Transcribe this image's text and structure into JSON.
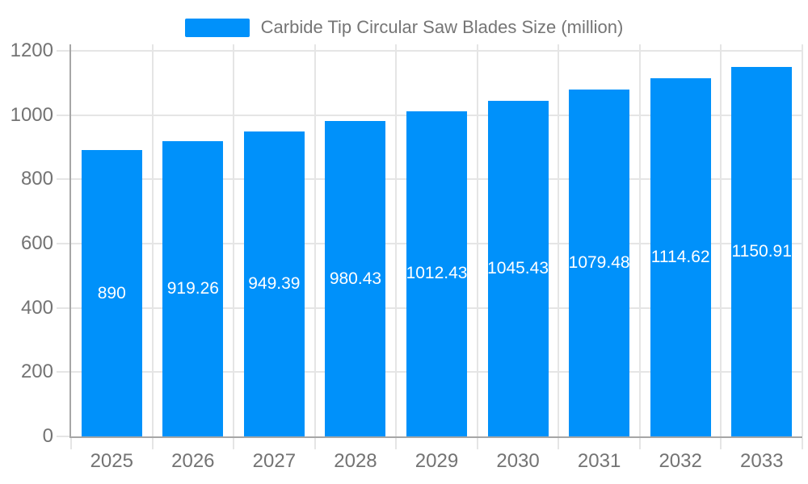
{
  "legend": {
    "label": "Carbide Tip Circular Saw Blades Size (million)"
  },
  "chart_data": {
    "type": "bar",
    "title": "Carbide Tip Circular Saw Blades Size (million)",
    "categories": [
      "2025",
      "2026",
      "2027",
      "2028",
      "2029",
      "2030",
      "2031",
      "2032",
      "2033"
    ],
    "values": [
      890,
      919.26,
      949.39,
      980.43,
      1012.43,
      1045.43,
      1079.48,
      1114.62,
      1150.91
    ],
    "value_labels": [
      "890",
      "919.26",
      "949.39",
      "980.43",
      "1012.43",
      "1045.43",
      "1079.48",
      "1114.62",
      "1150.91"
    ],
    "xlabel": "",
    "ylabel": "",
    "ylim": [
      0,
      1200
    ],
    "y_ticks": [
      0,
      200,
      400,
      600,
      800,
      1000,
      1200
    ],
    "grid": true,
    "legend_position": "top",
    "bar_label_position": "inside-middle",
    "colors": {
      "bar": "#0091FA",
      "bar_label": "#ffffff",
      "grid": "#E5E5E5",
      "axis_line": "#A6A6A6",
      "tick_text": "#737373",
      "legend_text": "#757575",
      "background": "#ffffff"
    }
  }
}
